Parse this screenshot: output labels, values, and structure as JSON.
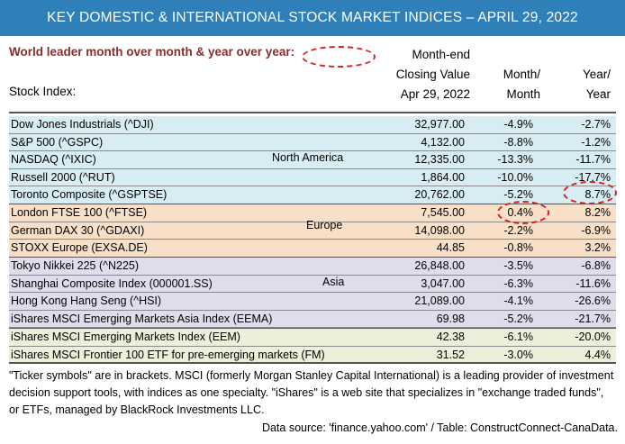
{
  "title": "KEY DOMESTIC & INTERNATIONAL STOCK MARKET INDICES – APRIL 29, 2022",
  "leader_note": "World leader month over month & year over year:",
  "headers": {
    "stock_index": "Stock Index:",
    "close_line1": "Month-end",
    "close_line2": "Closing Value",
    "close_line3": "Apr 29, 2022",
    "mm_line1": "Month/",
    "mm_line2": "Month",
    "yy_line1": "Year/",
    "yy_line2": "Year"
  },
  "regions": {
    "north_america": "North America",
    "europe": "Europe",
    "asia": "Asia"
  },
  "rows": [
    {
      "name": "Dow Jones Industrials (^DJI)",
      "close": "32,977.00",
      "mm": "-4.9%",
      "yy": "-2.7%"
    },
    {
      "name": "S&P 500 (^GSPC)",
      "close": "4,132.00",
      "mm": "-8.8%",
      "yy": "-1.2%"
    },
    {
      "name": "NASDAQ (^IXIC)",
      "close": "12,335.00",
      "mm": "-13.3%",
      "yy": "-11.7%"
    },
    {
      "name": "Russell  2000 (^RUT)",
      "close": "1,864.00",
      "mm": "-10.0%",
      "yy": "-17.7%"
    },
    {
      "name": "Toronto Composite (^GSPTSE)",
      "close": "20,762.00",
      "mm": "-5.2%",
      "yy": "8.7%"
    },
    {
      "name": "London FTSE 100 (^FTSE)",
      "close": "7,545.00",
      "mm": "0.4%",
      "yy": "8.2%"
    },
    {
      "name": "German DAX 30 (^GDAXI)",
      "close": "14,098.00",
      "mm": "-2.2%",
      "yy": "-6.9%"
    },
    {
      "name": "STOXX Europe (EXSA.DE)",
      "close": "44.85",
      "mm": "-0.8%",
      "yy": "3.2%"
    },
    {
      "name": "Tokyo Nikkei 225 (^N225)",
      "close": "26,848.00",
      "mm": "-3.5%",
      "yy": "-6.8%"
    },
    {
      "name": "Shanghai Composite Index (000001.SS)",
      "close": "3,047.00",
      "mm": "-6.3%",
      "yy": "-11.6%"
    },
    {
      "name": "Hong Kong Hang Seng (^HSI)",
      "close": "21,089.00",
      "mm": "-4.1%",
      "yy": "-26.6%"
    },
    {
      "name": "iShares MSCI Emerging Markets Asia Index (EEMA)",
      "close": "69.98",
      "mm": "-5.2%",
      "yy": "-21.7%"
    },
    {
      "name": "iShares MSCI Emerging Markets Index (EEM)",
      "close": "42.38",
      "mm": "-6.1%",
      "yy": "-20.0%"
    },
    {
      "name": "iShares MSCI Frontier 100 ETF for pre-emerging markets (FM)",
      "close": "31.52",
      "mm": "-3.0%",
      "yy": "4.4%"
    }
  ],
  "notes": "\"Ticker symbols\" are in brackets. MSCI (formerly Morgan Stanley Capital International) is a leading provider of investment decision support tools, with indices as one specialty. \"iShares\" is a web site that specializes in \"exchange traded funds\", or ETFs, managed by BlackRock Investments LLC.",
  "source": "Data source: 'finance.yahoo.com' / Table: ConstructConnect-CanaData.",
  "colors": {
    "banner": "#2f7fb8",
    "north_america_band": "#d8ecf3",
    "europe_band": "#f8dfc8",
    "asia_band": "#e1dcec",
    "emerging_band": "#ecefd9",
    "leader_text": "#8b2c2c",
    "highlight_oval": "#d42020"
  }
}
